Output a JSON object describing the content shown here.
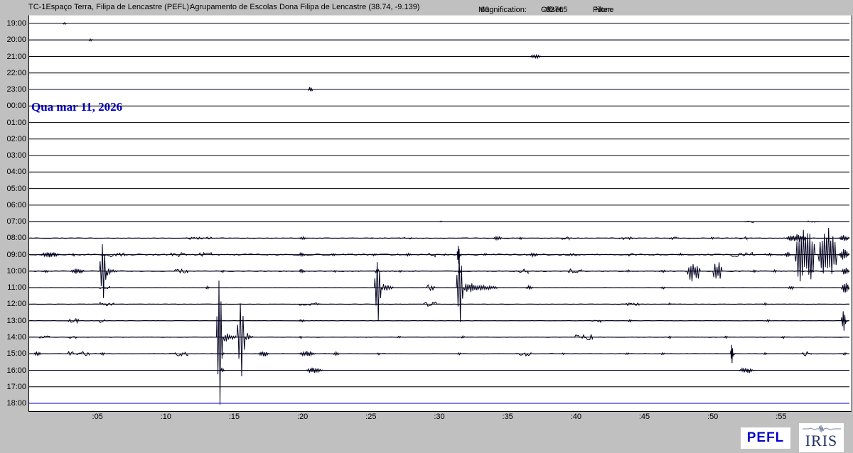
{
  "header": {
    "station": "TC-1Espaço Terra, Filipa de Lencastre (PEFL):",
    "network": "Agrupamento de Escolas Dona Filipa de Lencastre (38.74, -9.139)",
    "magnification_label": "Magnification:",
    "magnification_value": "60",
    "offset_label": "Offset:",
    "offset_value": "-32765",
    "filter_label": "Filter:",
    "filter_value": "None"
  },
  "date_annotation": {
    "text": "Qua mar 11, 2026",
    "at_row": "00:00"
  },
  "logos": {
    "pefl_label": "PEFL",
    "iris_label": "IRIS"
  },
  "colors": {
    "window_bg": "#c0c0c0",
    "plot_bg": "#ffffff",
    "trace": "#000020",
    "grid": "#000000",
    "active_line": "#0000cc",
    "date_text": "#0000cc",
    "pefl_text": "#0000cc",
    "iris_text": "#1f3268"
  },
  "chart_data": {
    "type": "helicorder",
    "minutes_per_row": 60,
    "x_ticks": [
      {
        "label": ":05",
        "minute": 5
      },
      {
        "label": ":10",
        "minute": 10
      },
      {
        "label": ":15",
        "minute": 15
      },
      {
        "label": ":20",
        "minute": 20
      },
      {
        "label": ":25",
        "minute": 25
      },
      {
        "label": ":30",
        "minute": 30
      },
      {
        "label": ":35",
        "minute": 35
      },
      {
        "label": ":40",
        "minute": 40
      },
      {
        "label": ":45",
        "minute": 45
      },
      {
        "label": ":50",
        "minute": 50
      },
      {
        "label": ":55",
        "minute": 55
      }
    ],
    "rows": [
      {
        "label": "19:00",
        "base": 0,
        "events": [
          {
            "m": 2.45,
            "d": 0.3,
            "a": 2,
            "k": "blip"
          }
        ]
      },
      {
        "label": "20:00",
        "base": 0,
        "events": [
          {
            "m": 4.35,
            "d": 0.3,
            "a": 3,
            "k": "blip"
          }
        ]
      },
      {
        "label": "21:00",
        "base": 0,
        "events": [
          {
            "m": 36.6,
            "d": 0.9,
            "a": 3,
            "k": "burst"
          }
        ]
      },
      {
        "label": "22:00",
        "base": 0,
        "events": []
      },
      {
        "label": "23:00",
        "base": 0,
        "events": [
          {
            "m": 20.4,
            "d": 0.35,
            "a": 4,
            "k": "blip"
          }
        ]
      },
      {
        "label": "00:00",
        "base": 0,
        "events": []
      },
      {
        "label": "01:00",
        "base": 0,
        "events": []
      },
      {
        "label": "02:00",
        "base": 0,
        "events": []
      },
      {
        "label": "03:00",
        "base": 0,
        "events": []
      },
      {
        "label": "04:00",
        "base": 0,
        "events": []
      },
      {
        "label": "05:00",
        "base": 0,
        "events": []
      },
      {
        "label": "06:00",
        "base": 0,
        "events": []
      },
      {
        "label": "07:00",
        "base": 0,
        "events": [
          {
            "m": 30.0,
            "d": 0.25,
            "a": 1,
            "k": "blip"
          },
          {
            "m": 52.3,
            "d": 0.7,
            "a": 2,
            "k": "noise"
          },
          {
            "m": 56.9,
            "d": 0.9,
            "a": 1,
            "k": "noise"
          }
        ]
      },
      {
        "label": "08:00",
        "base": 0.5,
        "events": [
          {
            "m": 11.4,
            "d": 2.0,
            "a": 2,
            "k": "noise"
          },
          {
            "m": 19.7,
            "d": 0.6,
            "a": 2,
            "k": "blip"
          },
          {
            "m": 24.9,
            "d": 0.3,
            "a": 1,
            "k": "blip"
          },
          {
            "m": 27.0,
            "d": 1.0,
            "a": 1,
            "k": "noise"
          },
          {
            "m": 33.9,
            "d": 0.7,
            "a": 3,
            "k": "burst"
          },
          {
            "m": 35.8,
            "d": 0.3,
            "a": 2,
            "k": "blip"
          },
          {
            "m": 38.9,
            "d": 0.6,
            "a": 2,
            "k": "noise"
          },
          {
            "m": 43.1,
            "d": 1.0,
            "a": 2,
            "k": "noise"
          },
          {
            "m": 46.7,
            "d": 0.8,
            "a": 2,
            "k": "noise"
          },
          {
            "m": 49.8,
            "d": 0.3,
            "a": 2,
            "k": "blip"
          },
          {
            "m": 51.9,
            "d": 0.6,
            "a": 2,
            "k": "noise"
          },
          {
            "m": 55.3,
            "d": 1.6,
            "a": 6,
            "k": "burst"
          },
          {
            "m": 59.2,
            "d": 0.8,
            "a": 5,
            "k": "burst"
          }
        ]
      },
      {
        "label": "09:00",
        "base": 0.9,
        "events": [
          {
            "m": 0.7,
            "d": 1.6,
            "a": 4,
            "k": "burst"
          },
          {
            "m": 3.1,
            "d": 0.3,
            "a": 2,
            "k": "blip"
          },
          {
            "m": 5.7,
            "d": 1.3,
            "a": 3,
            "k": "noise"
          },
          {
            "m": 10.3,
            "d": 1.2,
            "a": 3,
            "k": "noise"
          },
          {
            "m": 12.4,
            "d": 1.0,
            "a": 3,
            "k": "noise"
          },
          {
            "m": 19.7,
            "d": 0.5,
            "a": 3,
            "k": "blip"
          },
          {
            "m": 22.0,
            "d": 0.5,
            "a": 2,
            "k": "blip"
          },
          {
            "m": 25.0,
            "d": 0.5,
            "a": 2,
            "k": "blip"
          },
          {
            "m": 27.5,
            "d": 0.5,
            "a": 2,
            "k": "blip"
          },
          {
            "m": 29.0,
            "d": 0.7,
            "a": 3,
            "k": "noise"
          },
          {
            "m": 30.3,
            "d": 0.2,
            "a": 2,
            "k": "blip"
          },
          {
            "m": 31.3,
            "d": 0.2,
            "a": 13,
            "k": "spike",
            "t": 0.3
          },
          {
            "m": 33.2,
            "d": 0.3,
            "a": 2,
            "k": "blip"
          },
          {
            "m": 36.5,
            "d": 0.8,
            "a": 3,
            "k": "burst"
          },
          {
            "m": 39.4,
            "d": 0.7,
            "a": 2,
            "k": "noise"
          },
          {
            "m": 43.6,
            "d": 0.8,
            "a": 3,
            "k": "noise"
          },
          {
            "m": 47.4,
            "d": 0.5,
            "a": 2,
            "k": "blip"
          },
          {
            "m": 51.3,
            "d": 1.6,
            "a": 3,
            "k": "noise"
          },
          {
            "m": 53.9,
            "d": 0.5,
            "a": 2,
            "k": "blip"
          },
          {
            "m": 55.2,
            "d": 0.5,
            "a": 4,
            "k": "burst"
          },
          {
            "m": 56.0,
            "d": 1.5,
            "a": 46,
            "k": "bigburst"
          },
          {
            "m": 57.7,
            "d": 1.4,
            "a": 42,
            "k": "bigburst"
          },
          {
            "m": 59.2,
            "d": 0.8,
            "a": 8,
            "k": "burst"
          }
        ]
      },
      {
        "label": "10:00",
        "base": 0.6,
        "events": [
          {
            "m": 1.0,
            "d": 0.5,
            "a": 2,
            "k": "blip"
          },
          {
            "m": 3.0,
            "d": 1.1,
            "a": 4,
            "k": "burst"
          },
          {
            "m": 5.15,
            "d": 0.5,
            "a": 40,
            "k": "spike",
            "au": 40,
            "ad": 38,
            "t": 0.9
          },
          {
            "m": 10.6,
            "d": 1.0,
            "a": 3,
            "k": "noise"
          },
          {
            "m": 14.0,
            "d": 0.3,
            "a": 2,
            "k": "blip"
          },
          {
            "m": 19.7,
            "d": 0.5,
            "a": 3,
            "k": "blip"
          },
          {
            "m": 22.2,
            "d": 0.3,
            "a": 2,
            "k": "blip"
          },
          {
            "m": 25.3,
            "d": 0.3,
            "a": 4,
            "k": "blip"
          },
          {
            "m": 27.0,
            "d": 0.3,
            "a": 2,
            "k": "blip"
          },
          {
            "m": 31.35,
            "d": 0.25,
            "a": 4,
            "k": "blip"
          },
          {
            "m": 35.8,
            "d": 0.7,
            "a": 3,
            "k": "noise"
          },
          {
            "m": 39.4,
            "d": 1.0,
            "a": 3,
            "k": "noise"
          },
          {
            "m": 43.6,
            "d": 0.4,
            "a": 2,
            "k": "blip"
          },
          {
            "m": 46.1,
            "d": 0.5,
            "a": 2,
            "k": "blip"
          },
          {
            "m": 48.1,
            "d": 1.0,
            "a": 16,
            "k": "bigburst"
          },
          {
            "m": 50.0,
            "d": 0.7,
            "a": 15,
            "k": "bigburst"
          },
          {
            "m": 52.9,
            "d": 0.3,
            "a": 2,
            "k": "blip"
          },
          {
            "m": 54.4,
            "d": 0.3,
            "a": 2,
            "k": "blip"
          },
          {
            "m": 57.0,
            "d": 0.4,
            "a": 3,
            "k": "blip"
          },
          {
            "m": 59.4,
            "d": 0.6,
            "a": 6,
            "k": "burst"
          }
        ]
      },
      {
        "label": "11:00",
        "base": 0.3,
        "events": [
          {
            "m": 5.1,
            "d": 0.8,
            "a": 2,
            "k": "noise"
          },
          {
            "m": 12.9,
            "d": 0.3,
            "a": 2,
            "k": "blip"
          },
          {
            "m": 25.25,
            "d": 0.5,
            "a": 40,
            "k": "spike",
            "au": 38,
            "ad": 46,
            "t": 1.0
          },
          {
            "m": 29.0,
            "d": 0.8,
            "a": 4,
            "k": "noise"
          },
          {
            "m": 31.25,
            "d": 0.5,
            "a": 50,
            "k": "spike",
            "au": 52,
            "ad": 48
          },
          {
            "m": 31.8,
            "d": 2.4,
            "a": 9,
            "k": "coda"
          },
          {
            "m": 36.3,
            "d": 0.6,
            "a": 3,
            "k": "blip"
          },
          {
            "m": 46.1,
            "d": 0.5,
            "a": 2,
            "k": "blip"
          },
          {
            "m": 55.5,
            "d": 0.5,
            "a": 3,
            "k": "blip"
          },
          {
            "m": 59.4,
            "d": 0.6,
            "a": 8,
            "k": "burst"
          }
        ]
      },
      {
        "label": "12:00",
        "base": 0.3,
        "events": [
          {
            "m": 5.1,
            "d": 1.1,
            "a": 3,
            "k": "noise"
          },
          {
            "m": 19.7,
            "d": 1.5,
            "a": 2,
            "k": "noise"
          },
          {
            "m": 28.8,
            "d": 1.0,
            "a": 3,
            "k": "noise"
          },
          {
            "m": 43.6,
            "d": 1.0,
            "a": 2,
            "k": "noise"
          },
          {
            "m": 46.7,
            "d": 0.3,
            "a": 2,
            "k": "blip"
          },
          {
            "m": 53.7,
            "d": 0.3,
            "a": 2,
            "k": "blip"
          }
        ]
      },
      {
        "label": "13:00",
        "base": 0.3,
        "events": [
          {
            "m": 2.8,
            "d": 0.8,
            "a": 3,
            "k": "noise"
          },
          {
            "m": 5.1,
            "d": 0.6,
            "a": 3,
            "k": "noise"
          },
          {
            "m": 19.7,
            "d": 0.5,
            "a": 2,
            "k": "blip"
          },
          {
            "m": 41.0,
            "d": 0.8,
            "a": 3,
            "k": "noise"
          },
          {
            "m": 43.8,
            "d": 0.3,
            "a": 2,
            "k": "blip"
          },
          {
            "m": 53.9,
            "d": 0.3,
            "a": 2,
            "k": "blip"
          },
          {
            "m": 59.4,
            "d": 0.35,
            "a": 14,
            "k": "spike",
            "t": 0.2
          }
        ]
      },
      {
        "label": "14:00",
        "base": 0.3,
        "events": [
          {
            "m": 0.7,
            "d": 0.8,
            "a": 2,
            "k": "noise"
          },
          {
            "m": 2.8,
            "d": 0.7,
            "a": 2,
            "k": "noise"
          },
          {
            "m": 13.7,
            "d": 0.45,
            "a": 84,
            "k": "spike",
            "au": 84,
            "ad": 95
          },
          {
            "m": 14.2,
            "d": 0.9,
            "a": 8,
            "k": "coda"
          },
          {
            "m": 15.2,
            "d": 0.6,
            "a": 50,
            "k": "spike",
            "au": 50,
            "ad": 55,
            "t": 0.6
          },
          {
            "m": 19.7,
            "d": 0.3,
            "a": 2,
            "k": "blip"
          },
          {
            "m": 26.9,
            "d": 0.3,
            "a": 2,
            "k": "blip"
          },
          {
            "m": 31.6,
            "d": 0.3,
            "a": 2,
            "k": "blip"
          },
          {
            "m": 39.9,
            "d": 1.3,
            "a": 4,
            "k": "noise"
          },
          {
            "m": 46.7,
            "d": 0.3,
            "a": 2,
            "k": "blip"
          },
          {
            "m": 50.8,
            "d": 0.3,
            "a": 2,
            "k": "blip"
          },
          {
            "m": 55.0,
            "d": 0.3,
            "a": 2,
            "k": "blip"
          }
        ]
      },
      {
        "label": "15:00",
        "base": 0.4,
        "events": [
          {
            "m": 0.3,
            "d": 0.6,
            "a": 3,
            "k": "burst"
          },
          {
            "m": 2.8,
            "d": 1.6,
            "a": 3,
            "k": "noise"
          },
          {
            "m": 5.1,
            "d": 0.5,
            "a": 2,
            "k": "blip"
          },
          {
            "m": 10.6,
            "d": 1.0,
            "a": 3,
            "k": "noise"
          },
          {
            "m": 14.0,
            "d": 0.3,
            "a": 2,
            "k": "blip"
          },
          {
            "m": 16.7,
            "d": 0.9,
            "a": 4,
            "k": "burst"
          },
          {
            "m": 19.7,
            "d": 1.3,
            "a": 4,
            "k": "burst"
          },
          {
            "m": 22.2,
            "d": 0.5,
            "a": 3,
            "k": "blip"
          },
          {
            "m": 25.4,
            "d": 0.3,
            "a": 2,
            "k": "blip"
          },
          {
            "m": 31.3,
            "d": 0.3,
            "a": 2,
            "k": "blip"
          },
          {
            "m": 35.8,
            "d": 0.9,
            "a": 3,
            "k": "noise"
          },
          {
            "m": 38.9,
            "d": 0.3,
            "a": 2,
            "k": "blip"
          },
          {
            "m": 43.6,
            "d": 0.3,
            "a": 2,
            "k": "blip"
          },
          {
            "m": 46.2,
            "d": 0.3,
            "a": 2,
            "k": "blip"
          },
          {
            "m": 51.3,
            "d": 0.2,
            "a": 13,
            "k": "spike",
            "t": 0.2
          },
          {
            "m": 53.7,
            "d": 0.3,
            "a": 2,
            "k": "blip"
          },
          {
            "m": 56.5,
            "d": 0.7,
            "a": 3,
            "k": "noise"
          },
          {
            "m": 59.5,
            "d": 0.3,
            "a": 2,
            "k": "blip"
          }
        ]
      },
      {
        "label": "16:00",
        "base": 0,
        "events": [
          {
            "m": 13.95,
            "d": 0.35,
            "a": 3,
            "k": "blip"
          },
          {
            "m": 20.2,
            "d": 1.3,
            "a": 4,
            "k": "burst"
          },
          {
            "m": 51.9,
            "d": 1.1,
            "a": 4,
            "k": "burst"
          }
        ]
      },
      {
        "label": "17:00",
        "base": 0,
        "events": []
      },
      {
        "label": "18:00",
        "base": 0,
        "current": true,
        "events": []
      }
    ]
  }
}
